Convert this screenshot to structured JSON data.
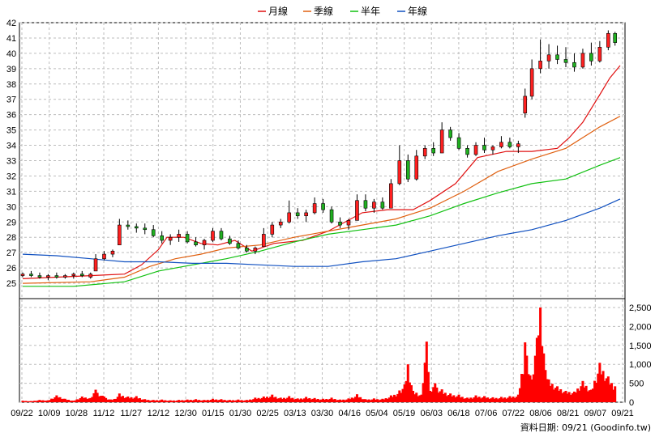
{
  "chart_data": {
    "type": "line",
    "legend": [
      {
        "label": "月線",
        "color": "#e01010"
      },
      {
        "label": "季線",
        "color": "#e06010"
      },
      {
        "label": "半年",
        "color": "#10c010"
      },
      {
        "label": "年線",
        "color": "#1050c0"
      }
    ],
    "price_axis": {
      "min": 25,
      "max": 42,
      "ticks": [
        "25",
        "26",
        "27",
        "28",
        "29",
        "30",
        "31",
        "32",
        "33",
        "34",
        "35",
        "36",
        "37",
        "38",
        "39",
        "40",
        "41",
        "42"
      ]
    },
    "volume_axis": {
      "min": 0,
      "max": 2500,
      "ticks": [
        "0",
        "500",
        "1,000",
        "1,500",
        "2,000",
        "2,500"
      ]
    },
    "x_labels": [
      "09/22",
      "10/09",
      "10/28",
      "11/12",
      "11/27",
      "12/12",
      "12/30",
      "01/15",
      "01/30",
      "02/25",
      "03/13",
      "03/30",
      "04/16",
      "05/04",
      "05/19",
      "06/03",
      "06/18",
      "07/06",
      "07/22",
      "08/06",
      "08/21",
      "09/07",
      "09/21"
    ],
    "source_note": "資料日期: 09/21  (Goodinfo.tw)",
    "series": [
      {
        "name": "月線",
        "color": "#e01010",
        "values": [
          [
            0,
            25.3
          ],
          [
            20,
            25.4
          ],
          [
            40,
            25.5
          ],
          [
            60,
            25.6
          ],
          [
            70,
            26.2
          ],
          [
            80,
            27.2
          ],
          [
            85,
            28.0
          ],
          [
            95,
            28.0
          ],
          [
            105,
            27.6
          ],
          [
            115,
            27.5
          ],
          [
            125,
            27.8
          ],
          [
            135,
            27.1
          ],
          [
            148,
            27.6
          ],
          [
            165,
            27.8
          ],
          [
            180,
            28.4
          ],
          [
            200,
            29.6
          ],
          [
            215,
            29.8
          ],
          [
            230,
            29.8
          ],
          [
            240,
            30.4
          ],
          [
            255,
            31.5
          ],
          [
            268,
            33.2
          ],
          [
            285,
            33.6
          ],
          [
            300,
            33.6
          ],
          [
            315,
            33.8
          ],
          [
            322,
            34.5
          ],
          [
            330,
            35.5
          ],
          [
            340,
            37.3
          ],
          [
            346,
            38.4
          ],
          [
            352,
            39.2
          ]
        ]
      },
      {
        "name": "季線",
        "color": "#e06010",
        "values": [
          [
            0,
            25.0
          ],
          [
            40,
            25.1
          ],
          [
            60,
            25.4
          ],
          [
            75,
            26.1
          ],
          [
            90,
            26.6
          ],
          [
            105,
            26.9
          ],
          [
            120,
            27.3
          ],
          [
            140,
            27.5
          ],
          [
            160,
            28.0
          ],
          [
            180,
            28.4
          ],
          [
            200,
            28.8
          ],
          [
            220,
            29.2
          ],
          [
            240,
            29.9
          ],
          [
            260,
            31.0
          ],
          [
            280,
            32.3
          ],
          [
            300,
            33.1
          ],
          [
            320,
            33.8
          ],
          [
            340,
            35.2
          ],
          [
            352,
            35.9
          ]
        ]
      },
      {
        "name": "半年",
        "color": "#10c010",
        "values": [
          [
            0,
            24.8
          ],
          [
            30,
            24.8
          ],
          [
            60,
            25.1
          ],
          [
            80,
            25.8
          ],
          [
            100,
            26.2
          ],
          [
            120,
            26.6
          ],
          [
            140,
            27.1
          ],
          [
            160,
            27.7
          ],
          [
            180,
            28.2
          ],
          [
            200,
            28.5
          ],
          [
            220,
            28.8
          ],
          [
            240,
            29.4
          ],
          [
            260,
            30.2
          ],
          [
            280,
            30.9
          ],
          [
            300,
            31.5
          ],
          [
            320,
            31.8
          ],
          [
            340,
            32.7
          ],
          [
            352,
            33.2
          ]
        ]
      },
      {
        "name": "年線",
        "color": "#1050c0",
        "values": [
          [
            0,
            26.9
          ],
          [
            20,
            26.8
          ],
          [
            40,
            26.6
          ],
          [
            60,
            26.4
          ],
          [
            80,
            26.4
          ],
          [
            100,
            26.3
          ],
          [
            120,
            26.3
          ],
          [
            140,
            26.2
          ],
          [
            160,
            26.1
          ],
          [
            180,
            26.1
          ],
          [
            200,
            26.4
          ],
          [
            220,
            26.6
          ],
          [
            240,
            27.1
          ],
          [
            260,
            27.6
          ],
          [
            280,
            28.1
          ],
          [
            300,
            28.5
          ],
          [
            320,
            29.1
          ],
          [
            340,
            29.9
          ],
          [
            352,
            30.5
          ]
        ]
      }
    ],
    "candles": [
      [
        0,
        25.5,
        25.7,
        25.4,
        25.6
      ],
      [
        5,
        25.6,
        25.8,
        25.4,
        25.5
      ],
      [
        10,
        25.5,
        25.7,
        25.3,
        25.4
      ],
      [
        15,
        25.4,
        25.6,
        25.2,
        25.5
      ],
      [
        20,
        25.5,
        25.7,
        25.3,
        25.4
      ],
      [
        25,
        25.4,
        25.6,
        25.3,
        25.5
      ],
      [
        30,
        25.5,
        25.7,
        25.3,
        25.6
      ],
      [
        35,
        25.6,
        25.8,
        25.4,
        25.5
      ],
      [
        40,
        25.4,
        25.7,
        25.3,
        25.6
      ],
      [
        43,
        25.8,
        26.9,
        25.8,
        26.6
      ],
      [
        48,
        26.6,
        27.1,
        26.5,
        26.9
      ],
      [
        53,
        26.9,
        27.2,
        26.7,
        27.1
      ],
      [
        57,
        27.5,
        29.2,
        27.5,
        28.8
      ],
      [
        62,
        28.8,
        29.1,
        28.5,
        28.7
      ],
      [
        67,
        28.7,
        28.9,
        28.3,
        28.6
      ],
      [
        72,
        28.6,
        28.9,
        28.2,
        28.5
      ],
      [
        77,
        28.5,
        28.8,
        28.0,
        28.1
      ],
      [
        82,
        28.1,
        28.4,
        27.6,
        27.8
      ],
      [
        87,
        27.8,
        28.2,
        27.5,
        28.0
      ],
      [
        92,
        28.0,
        28.5,
        27.7,
        28.2
      ],
      [
        97,
        28.2,
        28.4,
        27.6,
        27.7
      ],
      [
        102,
        27.7,
        28.0,
        27.4,
        27.5
      ],
      [
        107,
        27.5,
        27.9,
        27.2,
        27.8
      ],
      [
        112,
        27.8,
        28.6,
        27.7,
        28.4
      ],
      [
        117,
        28.4,
        28.6,
        27.8,
        27.9
      ],
      [
        122,
        27.9,
        28.1,
        27.5,
        27.6
      ],
      [
        127,
        27.6,
        27.8,
        27.2,
        27.3
      ],
      [
        132,
        27.3,
        27.5,
        27.0,
        27.1
      ],
      [
        137,
        27.1,
        27.4,
        26.9,
        27.3
      ],
      [
        142,
        27.4,
        28.6,
        27.4,
        28.2
      ],
      [
        147,
        28.2,
        29.0,
        28.0,
        28.8
      ],
      [
        152,
        28.8,
        29.2,
        28.6,
        29.0
      ],
      [
        157,
        29.0,
        30.4,
        28.9,
        29.6
      ],
      [
        162,
        29.6,
        29.9,
        29.2,
        29.4
      ],
      [
        167,
        29.4,
        29.8,
        29.0,
        29.6
      ],
      [
        172,
        29.6,
        30.6,
        29.5,
        30.2
      ],
      [
        177,
        30.2,
        30.5,
        29.6,
        29.8
      ],
      [
        182,
        29.8,
        30.0,
        28.9,
        29.0
      ],
      [
        187,
        29.0,
        29.3,
        28.6,
        28.8
      ],
      [
        192,
        28.8,
        29.2,
        28.5,
        29.1
      ],
      [
        197,
        29.1,
        30.8,
        29.1,
        30.4
      ],
      [
        202,
        30.4,
        30.8,
        29.7,
        29.9
      ],
      [
        207,
        29.9,
        30.5,
        29.6,
        30.3
      ],
      [
        212,
        30.3,
        30.6,
        29.8,
        29.9
      ],
      [
        217,
        29.9,
        31.8,
        29.9,
        31.5
      ],
      [
        222,
        31.5,
        34.0,
        31.4,
        33.0
      ],
      [
        227,
        33.0,
        33.4,
        31.6,
        31.8
      ],
      [
        232,
        31.8,
        33.7,
        31.7,
        33.3
      ],
      [
        237,
        33.3,
        34.0,
        33.1,
        33.8
      ],
      [
        242,
        33.8,
        34.2,
        33.3,
        33.5
      ],
      [
        247,
        33.5,
        35.5,
        33.5,
        35.0
      ],
      [
        252,
        35.0,
        35.2,
        34.3,
        34.5
      ],
      [
        257,
        34.5,
        34.8,
        33.7,
        33.8
      ],
      [
        262,
        33.8,
        34.0,
        33.2,
        33.4
      ],
      [
        267,
        33.4,
        34.2,
        33.3,
        34.0
      ],
      [
        272,
        34.0,
        34.5,
        33.5,
        33.7
      ],
      [
        277,
        33.7,
        34.0,
        33.4,
        33.9
      ],
      [
        282,
        33.9,
        34.6,
        33.8,
        34.2
      ],
      [
        287,
        34.2,
        34.5,
        33.8,
        33.9
      ],
      [
        292,
        33.9,
        34.3,
        33.5,
        34.1
      ],
      [
        296,
        36.1,
        37.7,
        35.8,
        37.2
      ],
      [
        300,
        37.2,
        39.6,
        37.0,
        39.0
      ],
      [
        305,
        39.0,
        40.9,
        38.7,
        39.5
      ],
      [
        310,
        39.5,
        40.6,
        39.0,
        39.9
      ],
      [
        315,
        39.9,
        40.5,
        39.3,
        39.6
      ],
      [
        320,
        39.6,
        40.4,
        39.1,
        39.4
      ],
      [
        325,
        39.4,
        40.0,
        38.8,
        39.1
      ],
      [
        330,
        39.1,
        40.3,
        39.0,
        40.0
      ],
      [
        335,
        40.0,
        40.7,
        39.2,
        39.5
      ],
      [
        340,
        39.5,
        40.8,
        39.4,
        40.4
      ],
      [
        345,
        40.4,
        41.5,
        40.2,
        41.3
      ],
      [
        349,
        41.3,
        41.4,
        40.5,
        40.7
      ]
    ],
    "volumes": [
      [
        0,
        40
      ],
      [
        5,
        30
      ],
      [
        10,
        60
      ],
      [
        15,
        50
      ],
      [
        20,
        180
      ],
      [
        25,
        90
      ],
      [
        30,
        40
      ],
      [
        35,
        150
      ],
      [
        40,
        110
      ],
      [
        43,
        330
      ],
      [
        48,
        150
      ],
      [
        53,
        60
      ],
      [
        57,
        230
      ],
      [
        62,
        150
      ],
      [
        67,
        160
      ],
      [
        72,
        80
      ],
      [
        77,
        60
      ],
      [
        82,
        70
      ],
      [
        87,
        50
      ],
      [
        92,
        60
      ],
      [
        97,
        70
      ],
      [
        102,
        80
      ],
      [
        107,
        60
      ],
      [
        112,
        90
      ],
      [
        117,
        80
      ],
      [
        122,
        60
      ],
      [
        127,
        70
      ],
      [
        132,
        60
      ],
      [
        137,
        120
      ],
      [
        142,
        150
      ],
      [
        147,
        200
      ],
      [
        152,
        120
      ],
      [
        157,
        160
      ],
      [
        162,
        100
      ],
      [
        167,
        140
      ],
      [
        172,
        110
      ],
      [
        177,
        90
      ],
      [
        182,
        120
      ],
      [
        187,
        70
      ],
      [
        192,
        100
      ],
      [
        197,
        210
      ],
      [
        202,
        80
      ],
      [
        207,
        100
      ],
      [
        212,
        90
      ],
      [
        217,
        180
      ],
      [
        222,
        310
      ],
      [
        225,
        470
      ],
      [
        227,
        1000
      ],
      [
        230,
        300
      ],
      [
        232,
        250
      ],
      [
        235,
        200
      ],
      [
        238,
        1600
      ],
      [
        240,
        300
      ],
      [
        243,
        500
      ],
      [
        247,
        340
      ],
      [
        252,
        230
      ],
      [
        257,
        200
      ],
      [
        262,
        120
      ],
      [
        267,
        180
      ],
      [
        272,
        160
      ],
      [
        277,
        130
      ],
      [
        282,
        140
      ],
      [
        287,
        160
      ],
      [
        292,
        200
      ],
      [
        296,
        1580
      ],
      [
        300,
        600
      ],
      [
        303,
        1700
      ],
      [
        305,
        2500
      ],
      [
        308,
        850
      ],
      [
        310,
        600
      ],
      [
        315,
        420
      ],
      [
        320,
        300
      ],
      [
        325,
        280
      ],
      [
        330,
        560
      ],
      [
        335,
        330
      ],
      [
        340,
        1040
      ],
      [
        345,
        680
      ],
      [
        349,
        420
      ]
    ]
  }
}
